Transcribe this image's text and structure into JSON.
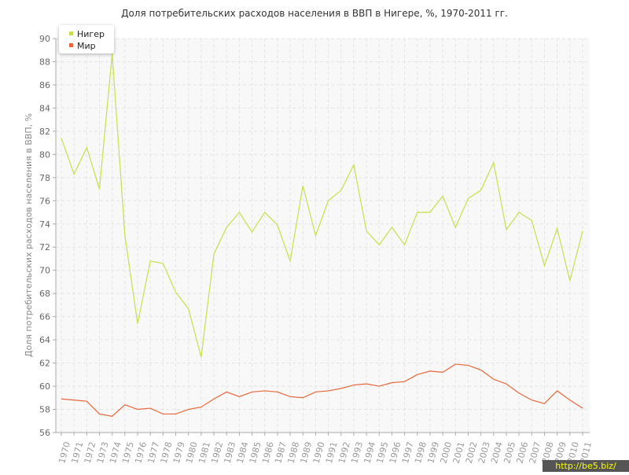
{
  "chart_data": {
    "type": "line",
    "title": "Доля потребительских расходов населения в ВВП в Нигере, %, 1970-2011 гг.",
    "y_label": "Доля потребительских расходов населения в ВВП, %",
    "categories": [
      "1970",
      "1971",
      "1972",
      "1973",
      "1974",
      "1975",
      "1976",
      "1977",
      "1978",
      "1979",
      "1980",
      "1981",
      "1982",
      "1983",
      "1984",
      "1985",
      "1986",
      "1987",
      "1988",
      "1989",
      "1990",
      "1991",
      "1992",
      "1993",
      "1994",
      "1995",
      "1996",
      "1997",
      "1998",
      "1999",
      "2000",
      "2001",
      "2002",
      "2003",
      "2004",
      "2005",
      "2006",
      "2007",
      "2008",
      "2009",
      "2010",
      "2011"
    ],
    "series": [
      {
        "name": "Нигер",
        "color": "#c5e04a",
        "values": [
          81.4,
          78.3,
          80.6,
          77.0,
          88.7,
          73.0,
          65.4,
          70.8,
          70.6,
          68.1,
          66.7,
          62.5,
          71.4,
          73.7,
          75.0,
          73.3,
          75.0,
          73.9,
          70.8,
          77.3,
          73.0,
          76.0,
          76.9,
          79.1,
          73.4,
          72.2,
          73.7,
          72.2,
          75.0,
          75.0,
          76.4,
          73.7,
          76.2,
          76.9,
          79.3,
          73.5,
          75.0,
          74.3,
          70.4,
          73.6,
          69.1,
          73.4
        ]
      },
      {
        "name": "Мир",
        "color": "#e8663a",
        "values": [
          58.9,
          58.8,
          58.7,
          57.6,
          57.4,
          58.4,
          58.0,
          58.1,
          57.6,
          57.6,
          58.0,
          58.2,
          58.9,
          59.5,
          59.1,
          59.5,
          59.6,
          59.5,
          59.1,
          59.0,
          59.5,
          59.6,
          59.8,
          60.1,
          60.2,
          60.0,
          60.3,
          60.4,
          61.0,
          61.3,
          61.2,
          61.9,
          61.8,
          61.4,
          60.6,
          60.2,
          59.4,
          58.8,
          58.5,
          59.6,
          58.8,
          58.1
        ]
      }
    ],
    "ylim": [
      56,
      90
    ],
    "yticks": [
      56,
      58,
      60,
      62,
      64,
      66,
      68,
      70,
      72,
      74,
      76,
      78,
      80,
      82,
      84,
      86,
      88,
      90
    ],
    "grid": true,
    "legend": "top-left",
    "watermark": "http://be5.biz/"
  }
}
